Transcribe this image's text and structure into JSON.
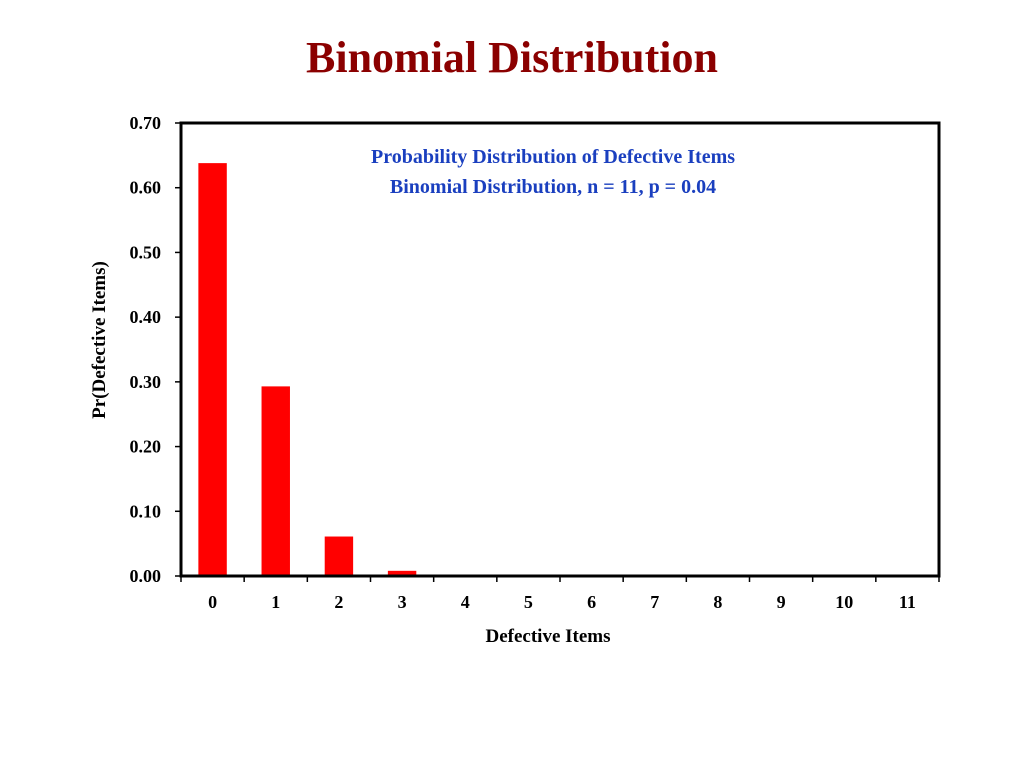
{
  "slide": {
    "title": "Binomial Distribution"
  },
  "colors": {
    "title": "#8b0000",
    "inner_title": "#1a3fbf",
    "bars": "#ff0000"
  },
  "chart_data": {
    "type": "bar",
    "title_lines": [
      "Probability Distribution of Defective Items",
      "Binomial Distribution, n = 11, p = 0.04"
    ],
    "xlabel": "Defective Items",
    "ylabel": "Pr(Defective Items)",
    "categories": [
      "0",
      "1",
      "2",
      "3",
      "4",
      "5",
      "6",
      "7",
      "8",
      "9",
      "10",
      "11"
    ],
    "values": [
      0.638,
      0.293,
      0.061,
      0.008,
      0.0007,
      4e-05,
      0.0,
      0.0,
      0.0,
      0.0,
      0.0,
      0.0
    ],
    "ylim": [
      0,
      0.7
    ],
    "yticks": [
      "0.00",
      "0.10",
      "0.20",
      "0.30",
      "0.40",
      "0.50",
      "0.60",
      "0.70"
    ],
    "grid": false,
    "legend": "none"
  }
}
